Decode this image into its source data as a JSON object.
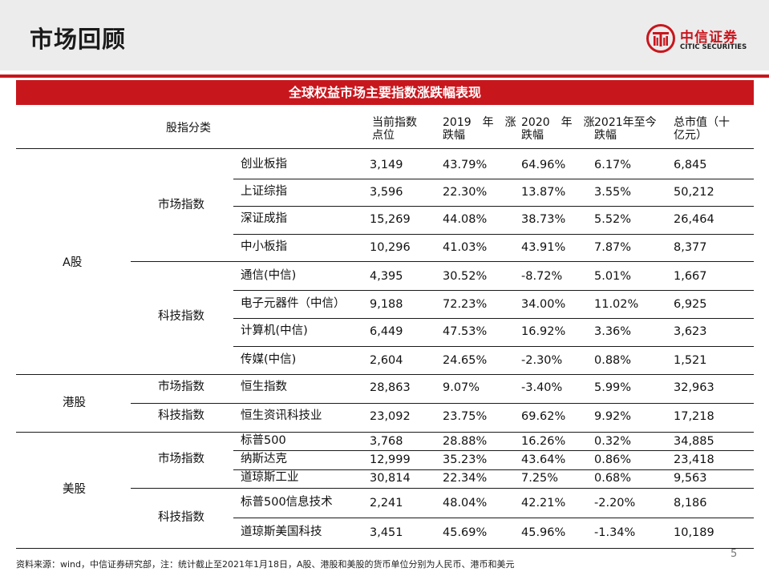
{
  "page": {
    "title": "市场回顾",
    "logo_cn": "中信证券",
    "logo_en": "CITIC SECURITIES",
    "page_number": "5",
    "footnote": "资料来源：wind，中信证券研究部，注：统计截止至2021年1月18日，A股、港股和美股的货币单位分别为人民币、港币和美元"
  },
  "colors": {
    "accent": "#c8161d",
    "header_band": "#ececec"
  },
  "table": {
    "caption": "全球权益市场主要指数涨跌幅表现",
    "headers": {
      "category": "股指分类",
      "c1": [
        "当前指数",
        "点位"
      ],
      "c2": [
        "2019　年　涨",
        "跌幅"
      ],
      "c3": [
        "2020　年　涨",
        "跌幅"
      ],
      "c4": [
        "2021年至今",
        "跌幅"
      ],
      "c5": [
        "总市值（十",
        "亿元）"
      ]
    },
    "markets": [
      "A股",
      "港股",
      "美股"
    ],
    "groups": [
      "市场指数",
      "科技指数",
      "市场指数",
      "科技指数",
      "市场指数",
      "科技指数"
    ],
    "rows": [
      {
        "name": "创业板指",
        "point": "3,149",
        "y2019": "43.79%",
        "y2020": "64.96%",
        "ytd": "6.17%",
        "cap": "6,845"
      },
      {
        "name": "上证综指",
        "point": "3,596",
        "y2019": "22.30%",
        "y2020": "13.87%",
        "ytd": "3.55%",
        "cap": "50,212"
      },
      {
        "name": "深证成指",
        "point": "15,269",
        "y2019": "44.08%",
        "y2020": "38.73%",
        "ytd": "5.52%",
        "cap": "26,464"
      },
      {
        "name": "中小板指",
        "point": "10,296",
        "y2019": "41.03%",
        "y2020": "43.91%",
        "ytd": "7.87%",
        "cap": "8,377"
      },
      {
        "name": "通信(中信)",
        "point": "4,395",
        "y2019": "30.52%",
        "y2020": "-8.72%",
        "ytd": "5.01%",
        "cap": "1,667"
      },
      {
        "name": "电子元器件（中信）",
        "point": "9,188",
        "y2019": "72.23%",
        "y2020": "34.00%",
        "ytd": "11.02%",
        "cap": "6,925"
      },
      {
        "name": "计算机(中信)",
        "point": "6,449",
        "y2019": "47.53%",
        "y2020": "16.92%",
        "ytd": "3.36%",
        "cap": "3,623"
      },
      {
        "name": "传媒(中信)",
        "point": "2,604",
        "y2019": "24.65%",
        "y2020": "-2.30%",
        "ytd": "0.88%",
        "cap": "1,521"
      },
      {
        "name": "恒生指数",
        "point": "28,863",
        "y2019": "9.07%",
        "y2020": "-3.40%",
        "ytd": "5.99%",
        "cap": "32,963"
      },
      {
        "name": "恒生资讯科技业",
        "point": "23,092",
        "y2019": "23.75%",
        "y2020": "69.62%",
        "ytd": "9.92%",
        "cap": "17,218"
      },
      {
        "name": "标普500",
        "point": "3,768",
        "y2019": "28.88%",
        "y2020": "16.26%",
        "ytd": "0.32%",
        "cap": "34,885"
      },
      {
        "name": "纳斯达克",
        "point": "12,999",
        "y2019": "35.23%",
        "y2020": "43.64%",
        "ytd": "0.86%",
        "cap": "23,418"
      },
      {
        "name": "道琼斯工业",
        "point": "30,814",
        "y2019": "22.34%",
        "y2020": "7.25%",
        "ytd": "0.68%",
        "cap": "9,563"
      },
      {
        "name": "标普500信息技术",
        "point": "2,241",
        "y2019": "48.04%",
        "y2020": "42.21%",
        "ytd": "-2.20%",
        "cap": "8,186"
      },
      {
        "name": "道琼斯美国科技",
        "point": "3,451",
        "y2019": "45.69%",
        "y2020": "45.96%",
        "ytd": "-1.34%",
        "cap": "10,189"
      }
    ]
  }
}
